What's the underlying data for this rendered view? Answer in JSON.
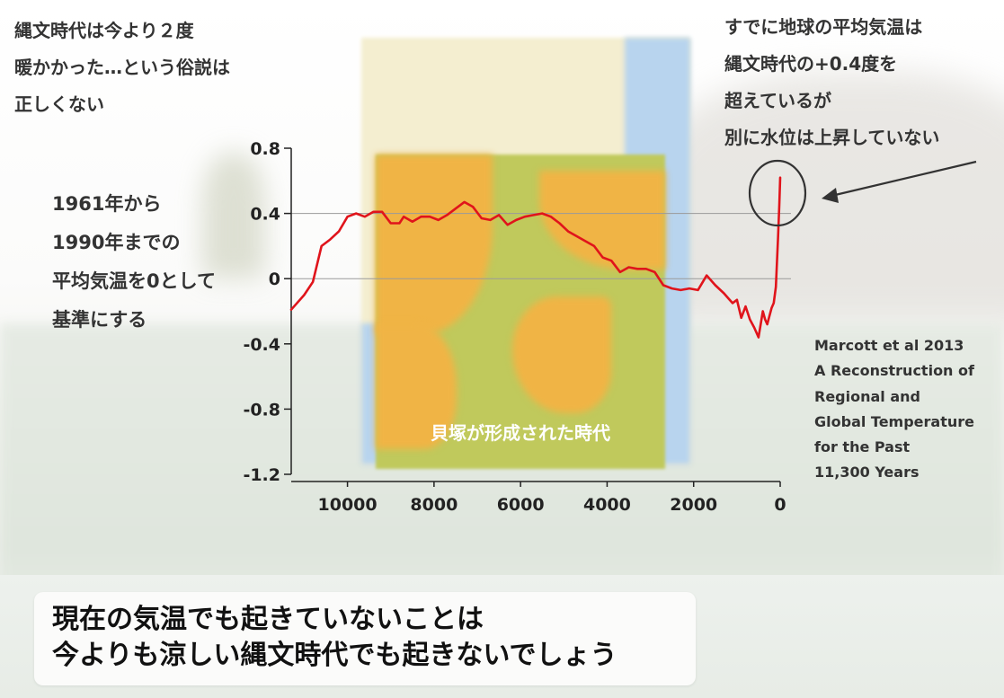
{
  "annotations": {
    "left_top": [
      "縄文時代は今より２度",
      "暖かかった…という俗説は",
      "正しくない"
    ],
    "baseline_note": [
      "1961年から",
      "1990年までの",
      "平均気温を0として",
      "基準にする"
    ],
    "right_top": [
      "すでに地球の平均気温は",
      "縄文時代の+0.4度を",
      "超えているが",
      "別に水位は上昇していない"
    ],
    "source": [
      "Marcott et al 2013",
      "A Reconstruction of",
      "Regional and",
      "Global Temperature",
      "for the Past",
      "11,300 Years"
    ],
    "era_label": "貝塚が形成された時代"
  },
  "caption": [
    "現在の気温でも起きていないことは",
    "今よりも涼しい縄文時代でも起きないでしょう"
  ],
  "colors": {
    "series_line": "#e0141b",
    "highlight_circle": "#333333",
    "arrow": "#333333",
    "era_box": "#c0c95c",
    "era_land": "#f0b445",
    "grid": "#9a9a9a"
  },
  "chart_data": {
    "type": "line",
    "x_reversed": true,
    "xlim": [
      11300,
      0
    ],
    "ylim": [
      -1.2,
      0.8
    ],
    "yticks": [
      0.8,
      0.4,
      0,
      -0.4,
      -0.8,
      -1.2
    ],
    "ytick_labels": [
      "0.8",
      "0.4",
      "0",
      "-0.4",
      "-0.8",
      "-1.2"
    ],
    "xticks": [
      10000,
      8000,
      6000,
      4000,
      2000,
      0
    ],
    "xtick_labels": [
      "10000",
      "8000",
      "6000",
      "4000",
      "2000",
      "0"
    ],
    "gridlines_y": [
      0.4,
      0
    ],
    "shaded_era_x": [
      9700,
      2800
    ],
    "highlight_x": 0,
    "x": [
      11300,
      11000,
      10800,
      10600,
      10400,
      10200,
      10000,
      9800,
      9600,
      9400,
      9200,
      9000,
      8800,
      8700,
      8500,
      8300,
      8100,
      7900,
      7700,
      7500,
      7300,
      7100,
      6900,
      6700,
      6500,
      6300,
      6100,
      5900,
      5700,
      5500,
      5300,
      5100,
      4900,
      4700,
      4500,
      4300,
      4100,
      3900,
      3700,
      3500,
      3300,
      3100,
      2900,
      2700,
      2500,
      2300,
      2100,
      1900,
      1700,
      1500,
      1300,
      1200,
      1100,
      1000,
      900,
      800,
      700,
      600,
      500,
      400,
      350,
      300,
      250,
      200,
      150,
      100,
      50,
      20,
      0
    ],
    "y": [
      -0.19,
      -0.1,
      -0.02,
      0.2,
      0.24,
      0.29,
      0.38,
      0.4,
      0.38,
      0.41,
      0.41,
      0.34,
      0.34,
      0.38,
      0.35,
      0.38,
      0.38,
      0.36,
      0.39,
      0.43,
      0.47,
      0.44,
      0.37,
      0.36,
      0.39,
      0.33,
      0.36,
      0.38,
      0.39,
      0.4,
      0.38,
      0.34,
      0.29,
      0.26,
      0.23,
      0.2,
      0.13,
      0.11,
      0.04,
      0.07,
      0.06,
      0.06,
      0.04,
      -0.04,
      -0.06,
      -0.07,
      -0.06,
      -0.07,
      0.02,
      -0.04,
      -0.09,
      -0.12,
      -0.15,
      -0.13,
      -0.24,
      -0.17,
      -0.25,
      -0.3,
      -0.36,
      -0.2,
      -0.25,
      -0.28,
      -0.23,
      -0.18,
      -0.15,
      -0.05,
      0.25,
      0.45,
      0.62
    ]
  }
}
